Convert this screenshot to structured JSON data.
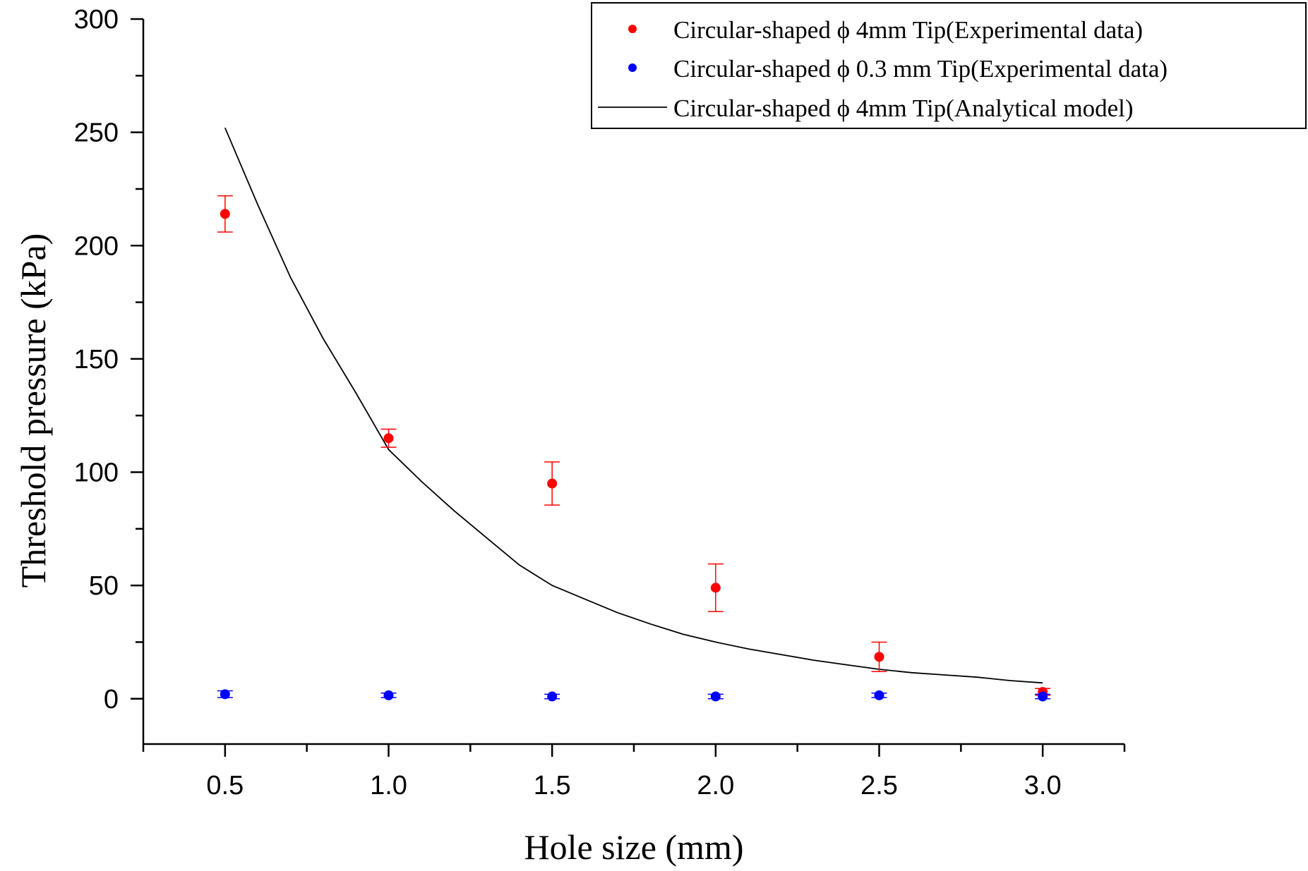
{
  "chart_data": {
    "type": "scatter",
    "title": "",
    "xlabel": "Hole size (mm)",
    "ylabel": "Threshold pressure (kPa)",
    "xlim": [
      0.25,
      3.25
    ],
    "ylim": [
      -20,
      300
    ],
    "xticks": [
      0.5,
      1.0,
      1.5,
      2.0,
      2.5,
      3.0
    ],
    "xtick_labels": [
      "0.5",
      "1.0",
      "1.5",
      "2.0",
      "2.5",
      "3.0"
    ],
    "yticks": [
      0,
      50,
      100,
      150,
      200,
      250,
      300
    ],
    "ytick_labels": [
      "0",
      "50",
      "100",
      "150",
      "200",
      "250",
      "300"
    ],
    "grid": false,
    "legend_position": "top-right",
    "series": [
      {
        "name": "Circular-shaped ϕ 4mm Tip(Experimental data)",
        "kind": "scatter",
        "color": "#ff0000",
        "x": [
          0.5,
          1.0,
          1.5,
          2.0,
          2.5,
          3.0
        ],
        "y": [
          214,
          115,
          95,
          49,
          18.5,
          3
        ],
        "yerr": [
          8,
          4,
          9.5,
          10.5,
          6.5,
          1.5
        ]
      },
      {
        "name": "Circular-shaped ϕ 0.3 mm Tip(Experimental data)",
        "kind": "scatter",
        "color": "#0000ff",
        "x": [
          0.5,
          1.0,
          1.5,
          2.0,
          2.5,
          3.0
        ],
        "y": [
          2,
          1.5,
          1,
          1,
          1.5,
          1
        ],
        "yerr": [
          1.5,
          1,
          1,
          1,
          1,
          1
        ]
      },
      {
        "name": "Circular-shaped ϕ 4mm Tip(Analytical model)",
        "kind": "line",
        "color": "#000000",
        "x": [
          0.5,
          0.6,
          0.7,
          0.8,
          0.9,
          1.0,
          1.1,
          1.2,
          1.3,
          1.4,
          1.5,
          1.6,
          1.7,
          1.8,
          1.9,
          2.0,
          2.1,
          2.2,
          2.3,
          2.4,
          2.5,
          2.6,
          2.7,
          2.8,
          2.9,
          3.0
        ],
        "y": [
          252,
          218,
          186,
          159,
          135,
          110,
          96,
          83,
          71,
          59,
          50,
          44,
          38,
          33,
          28.5,
          25,
          22,
          19.5,
          17,
          15,
          13,
          11.5,
          10.5,
          9.5,
          8,
          7
        ]
      }
    ]
  }
}
